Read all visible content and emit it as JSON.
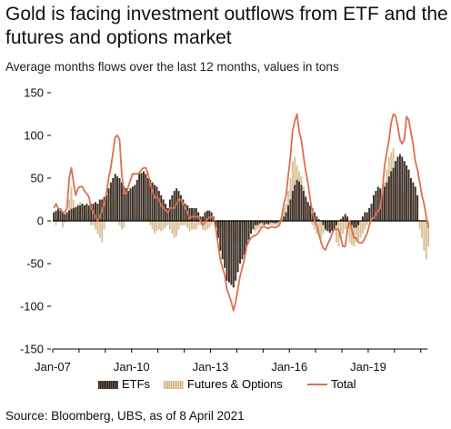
{
  "header": {
    "title": "Gold is facing investment outflows from ETF and the futures and options market",
    "subtitle": "Average months flows over the last 12 months, values in tons"
  },
  "footer": {
    "source": "Source: Bloomberg, UBS, as of 8 April 2021"
  },
  "colors": {
    "etf": "#3d3028",
    "futures_options": "#d9c29a",
    "total": "#d9714f",
    "axis": "#000000"
  },
  "chart_data": {
    "type": "bar",
    "title": "Gold is facing investment outflows from ETF and the futures and options market",
    "subtitle": "Average months flows over the last 12 months, values in tons",
    "ylim": [
      -150,
      150
    ],
    "y_ticks": [
      150,
      100,
      50,
      0,
      -50,
      -100,
      -150
    ],
    "x_tick_labels": [
      "Jan-07",
      "Jan-10",
      "Jan-13",
      "Jan-16",
      "Jan-19"
    ],
    "x_range": [
      "2007-01",
      "2021-03"
    ],
    "grid": false,
    "legend": {
      "position": "bottom",
      "entries": [
        "ETFs",
        "Futures & Options",
        "Total"
      ]
    },
    "series": [
      {
        "name": "ETFs",
        "kind": "bar",
        "frequency": "monthly",
        "start": "2007-01",
        "values": [
          10,
          12,
          14,
          12,
          10,
          8,
          10,
          12,
          14,
          15,
          16,
          18,
          18,
          20,
          18,
          20,
          18,
          20,
          20,
          22,
          20,
          25,
          25,
          28,
          30,
          38,
          45,
          50,
          55,
          52,
          50,
          45,
          40,
          38,
          35,
          38,
          40,
          42,
          48,
          55,
          56,
          58,
          55,
          50,
          48,
          45,
          42,
          40,
          35,
          30,
          25,
          20,
          15,
          25,
          30,
          35,
          38,
          35,
          30,
          25,
          20,
          18,
          15,
          15,
          15,
          15,
          10,
          5,
          5,
          10,
          12,
          12,
          10,
          5,
          -8,
          -20,
          -35,
          -45,
          -55,
          -70,
          -72,
          -75,
          -78,
          -70,
          -60,
          -50,
          -45,
          -40,
          -30,
          -22,
          -15,
          -10,
          -5,
          -5,
          -3,
          -2,
          -5,
          -3,
          -4,
          -2,
          -2,
          -3,
          -2,
          0,
          0,
          5,
          10,
          18,
          25,
          35,
          42,
          48,
          46,
          42,
          35,
          28,
          22,
          18,
          15,
          10,
          5,
          2,
          0,
          -5,
          -10,
          -12,
          -14,
          -12,
          -10,
          -5,
          0,
          2,
          5,
          8,
          5,
          0,
          -5,
          -8,
          -8,
          -5,
          0,
          5,
          10,
          10,
          15,
          20,
          30,
          35,
          40,
          38,
          35,
          40,
          45,
          52,
          58,
          62,
          70,
          75,
          78,
          75,
          70,
          65,
          60,
          50,
          45,
          40,
          30
        ]
      },
      {
        "name": "Futures & Options",
        "kind": "bar",
        "frequency": "monthly",
        "start": "2007-01",
        "values": [
          5,
          -5,
          3,
          2,
          -8,
          -2,
          5,
          25,
          40,
          25,
          15,
          20,
          22,
          20,
          15,
          12,
          8,
          -5,
          -5,
          -10,
          -15,
          -20,
          -25,
          -10,
          0,
          5,
          15,
          30,
          20,
          5,
          -5,
          -10,
          -8,
          5,
          10,
          15,
          20,
          12,
          8,
          5,
          5,
          10,
          10,
          5,
          -5,
          -10,
          -15,
          -12,
          -10,
          -12,
          -10,
          -8,
          -5,
          -10,
          -15,
          -20,
          -18,
          -10,
          -5,
          -5,
          -5,
          -8,
          -12,
          -10,
          -10,
          -10,
          -5,
          -5,
          -10,
          -12,
          -10,
          -8,
          -5,
          -2,
          -2,
          -8,
          -10,
          -10,
          -8,
          -10,
          -15,
          -20,
          -25,
          -25,
          -20,
          -15,
          -10,
          -5,
          0,
          -2,
          -5,
          -8,
          -12,
          -10,
          -8,
          -5,
          -2,
          -5,
          -5,
          -5,
          -5,
          -5,
          -5,
          -5,
          5,
          15,
          20,
          35,
          50,
          70,
          75,
          65,
          58,
          52,
          40,
          30,
          22,
          8,
          -5,
          -10,
          -15,
          -18,
          -20,
          -15,
          -12,
          -10,
          -8,
          -5,
          -10,
          -25,
          -30,
          -20,
          -15,
          -10,
          -15,
          -25,
          -28,
          -30,
          -25,
          -22,
          -20,
          -15,
          -10,
          -5,
          0,
          2,
          5,
          2,
          5,
          10,
          30,
          45,
          60,
          75,
          80,
          85,
          70,
          55,
          45,
          35,
          35,
          50,
          50,
          42,
          25,
          10,
          0,
          -10,
          -20,
          -35,
          -45,
          -30
        ]
      },
      {
        "name": "Total",
        "kind": "line",
        "frequency": "monthly",
        "start": "2007-01",
        "values": [
          15,
          20,
          14,
          14,
          10,
          10,
          15,
          50,
          62,
          45,
          30,
          38,
          40,
          40,
          35,
          32,
          28,
          15,
          10,
          5,
          0,
          5,
          12,
          20,
          32,
          50,
          62,
          80,
          98,
          100,
          95,
          55,
          32,
          32,
          40,
          48,
          55,
          55,
          55,
          56,
          60,
          62,
          62,
          55,
          43,
          35,
          27,
          28,
          25,
          18,
          15,
          12,
          10,
          15,
          15,
          15,
          20,
          25,
          25,
          20,
          15,
          10,
          3,
          5,
          5,
          5,
          5,
          0,
          -5,
          -2,
          2,
          4,
          5,
          3,
          -10,
          -28,
          -45,
          -55,
          -63,
          -80,
          -87,
          -95,
          -105,
          -95,
          -80,
          -65,
          -55,
          -45,
          -30,
          -24,
          -20,
          -18,
          -17,
          -15,
          -11,
          -7,
          -7,
          -8,
          -9,
          -7,
          -7,
          -8,
          -7,
          -5,
          5,
          20,
          30,
          53,
          75,
          105,
          117,
          125,
          104,
          94,
          75,
          58,
          44,
          26,
          10,
          0,
          -5,
          -15,
          -25,
          -32,
          -34,
          -27,
          -22,
          -15,
          -10,
          -10,
          -10,
          -20,
          -30,
          -30,
          -10,
          0,
          -10,
          -20,
          -20,
          -25,
          -26,
          -25,
          -20,
          -15,
          -5,
          3,
          3,
          8,
          12,
          15,
          35,
          65,
          80,
          95,
          115,
          125,
          123,
          110,
          95,
          90,
          95,
          122,
          118,
          104,
          90,
          70,
          60,
          45,
          30,
          20,
          5,
          -8
        ]
      }
    ]
  }
}
